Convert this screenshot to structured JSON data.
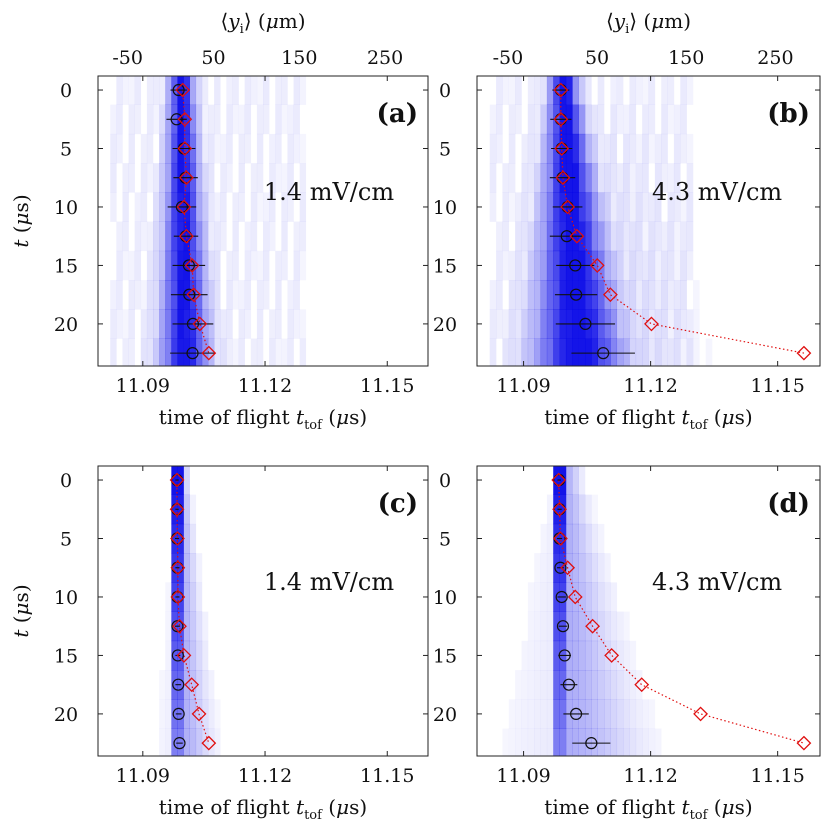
{
  "colors": {
    "heat": "#0000e6",
    "circle": "#111111",
    "diamond": "#e01010",
    "frame": "#222222"
  },
  "chart_data": [
    {
      "type": "heatmap",
      "panel": "(a)",
      "field": "1.4 mV/cm",
      "top_axis_label": "⟨y_i⟩ (μm)",
      "top_ticks": [
        "-50",
        "50",
        "150",
        "250"
      ],
      "top_tick_values": [
        -50,
        50,
        150,
        250
      ],
      "xlabel": "time of flight t_tof (μs)",
      "xticks": [
        "11.09",
        "11.12",
        "11.15"
      ],
      "xtick_values": [
        11.09,
        11.12,
        11.15
      ],
      "xlim": [
        11.079,
        11.16
      ],
      "ylabel": "t (μs)",
      "yticks": [
        "0",
        "5",
        "10",
        "15",
        "20"
      ],
      "ytick_values": [
        0,
        5,
        10,
        15,
        20
      ],
      "ylim": [
        -1.2,
        23.6
      ],
      "t": [
        0,
        2.5,
        5,
        7.5,
        10,
        12.5,
        15,
        17.5,
        20,
        22.5
      ],
      "circle_x": [
        11.0988,
        11.0983,
        11.1001,
        11.1005,
        11.0996,
        11.1006,
        11.1013,
        11.1014,
        11.1023,
        11.1022
      ],
      "circle_err": [
        0.002,
        0.0025,
        0.0028,
        0.003,
        0.0035,
        0.003,
        0.004,
        0.0045,
        0.005,
        0.0055
      ],
      "diamond_x": [
        11.0998,
        11.1003,
        11.1003,
        11.1007,
        11.1001,
        11.1007,
        11.1021,
        11.1025,
        11.104,
        11.1062
      ]
    },
    {
      "type": "heatmap",
      "panel": "(b)",
      "field": "4.3 mV/cm",
      "top_axis_label": "⟨y_i⟩ (μm)",
      "top_ticks": [
        "-50",
        "50",
        "150",
        "250"
      ],
      "top_tick_values": [
        -50,
        50,
        150,
        250
      ],
      "xlabel": "time of flight t_tof (μs)",
      "xticks": [
        "11.09",
        "11.12",
        "11.15"
      ],
      "xtick_values": [
        11.09,
        11.12,
        11.15
      ],
      "xlim": [
        11.079,
        11.16
      ],
      "ylabel": "t (μs)",
      "yticks": [
        "0",
        "5",
        "10",
        "15",
        "20"
      ],
      "ytick_values": [
        0,
        5,
        10,
        15,
        20
      ],
      "ylim": [
        -1.2,
        23.6
      ],
      "t": [
        0,
        2.5,
        5,
        7.5,
        10,
        12.5,
        15,
        17.5,
        20,
        22.5
      ],
      "circle_x": [
        11.0988,
        11.0988,
        11.099,
        11.0992,
        11.1004,
        11.1002,
        11.1022,
        11.1024,
        11.1046,
        11.1088
      ],
      "circle_err": [
        0.002,
        0.0025,
        0.0025,
        0.003,
        0.0035,
        0.004,
        0.0045,
        0.005,
        0.007,
        0.0075
      ],
      "diamond_x": [
        11.0988,
        11.0988,
        11.099,
        11.0993,
        11.1004,
        11.1026,
        11.1074,
        11.1105,
        11.1202,
        11.1562
      ]
    },
    {
      "type": "heatmap",
      "panel": "(c)",
      "field": "1.4 mV/cm",
      "xlabel": "time of flight t_tof (μs)",
      "xticks": [
        "11.09",
        "11.12",
        "11.15"
      ],
      "xtick_values": [
        11.09,
        11.12,
        11.15
      ],
      "xlim": [
        11.079,
        11.16
      ],
      "ylabel": "t (μs)",
      "yticks": [
        "0",
        "5",
        "10",
        "15",
        "20"
      ],
      "ytick_values": [
        0,
        5,
        10,
        15,
        20
      ],
      "ylim": [
        -1.2,
        23.6
      ],
      "t": [
        0,
        2.5,
        5,
        7.5,
        10,
        12.5,
        15,
        17.5,
        20,
        22.5
      ],
      "circle_x": [
        11.0984,
        11.0984,
        11.0984,
        11.0985,
        11.0985,
        11.0985,
        11.0986,
        11.0987,
        11.0988,
        11.099
      ],
      "circle_err": [
        0.0004,
        0.0004,
        0.0005,
        0.0005,
        0.0005,
        0.0006,
        0.0006,
        0.0007,
        0.0007,
        0.0008
      ],
      "diamond_x": [
        11.0984,
        11.0984,
        11.0985,
        11.0986,
        11.0986,
        11.099,
        11.1001,
        11.102,
        11.1038,
        11.1062
      ]
    },
    {
      "type": "heatmap",
      "panel": "(d)",
      "field": "4.3 mV/cm",
      "xlabel": "time of flight t_tof (μs)",
      "xticks": [
        "11.09",
        "11.12",
        "11.15"
      ],
      "xtick_values": [
        11.09,
        11.12,
        11.15
      ],
      "xlim": [
        11.079,
        11.16
      ],
      "ylabel": "t (μs)",
      "yticks": [
        "0",
        "5",
        "10",
        "15",
        "20"
      ],
      "ytick_values": [
        0,
        5,
        10,
        15,
        20
      ],
      "ylim": [
        -1.2,
        23.6
      ],
      "t": [
        0,
        2.5,
        5,
        7.5,
        10,
        12.5,
        15,
        17.5,
        20,
        22.5
      ],
      "circle_x": [
        11.0984,
        11.0985,
        11.0985,
        11.0987,
        11.099,
        11.0993,
        11.0997,
        11.1007,
        11.1024,
        11.106
      ],
      "circle_err": [
        0.0004,
        0.0005,
        0.0006,
        0.0008,
        0.001,
        0.001,
        0.0015,
        0.002,
        0.003,
        0.0045
      ],
      "diamond_x": [
        11.0983,
        11.0985,
        11.0987,
        11.1004,
        11.1022,
        11.1063,
        11.1108,
        11.1179,
        11.1318,
        11.1562
      ]
    }
  ]
}
